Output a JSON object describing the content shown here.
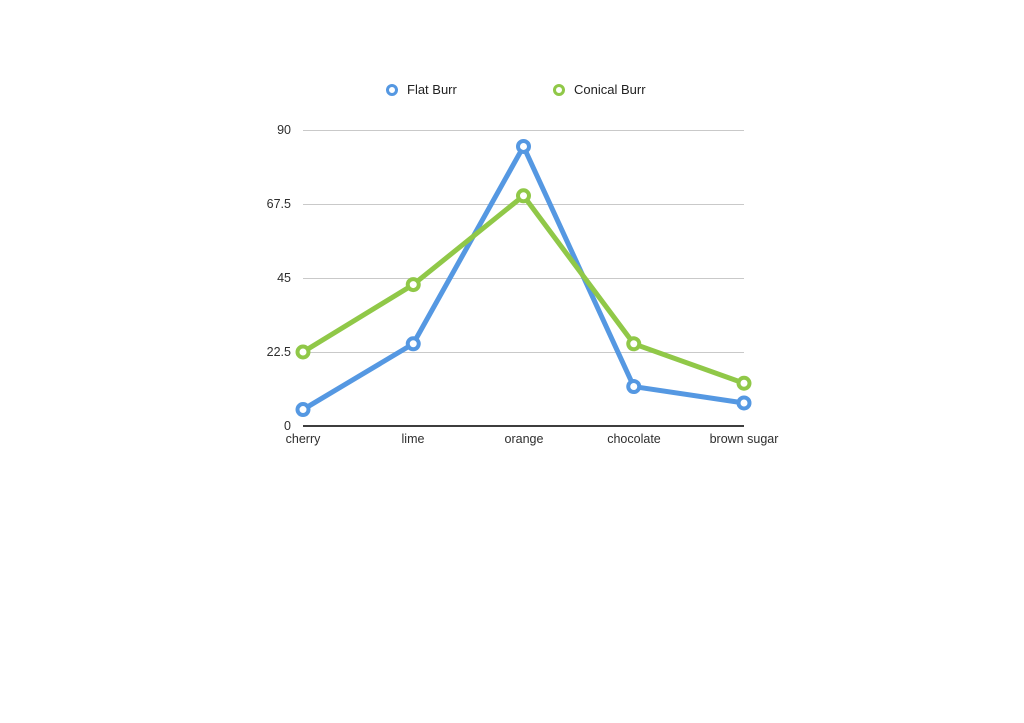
{
  "page": {
    "background": "#ffffff"
  },
  "chart_data": {
    "type": "line",
    "categories": [
      "cherry",
      "lime",
      "orange",
      "chocolate",
      "brown sugar"
    ],
    "series": [
      {
        "name": "Flat Burr",
        "color": "#5598e2",
        "values": [
          5,
          25,
          85,
          12,
          7
        ]
      },
      {
        "name": "Conical Burr",
        "color": "#90c848",
        "values": [
          22.5,
          43,
          70,
          25,
          13
        ]
      }
    ],
    "title": "",
    "xlabel": "",
    "ylabel": "",
    "ylim": [
      0,
      90
    ],
    "yticks": [
      0,
      22.5,
      45,
      67.5,
      90
    ],
    "ytick_labels_top_to_bottom": [
      "90",
      "67.5",
      "45",
      "22.5",
      "0"
    ],
    "grid": "horizontal",
    "grid_color": "#c9c9c9",
    "axis_color": "#3d3d3d",
    "text_color": "#2e2e2e",
    "legend_position": "top",
    "marker": "open-circle",
    "line_width": 5
  }
}
